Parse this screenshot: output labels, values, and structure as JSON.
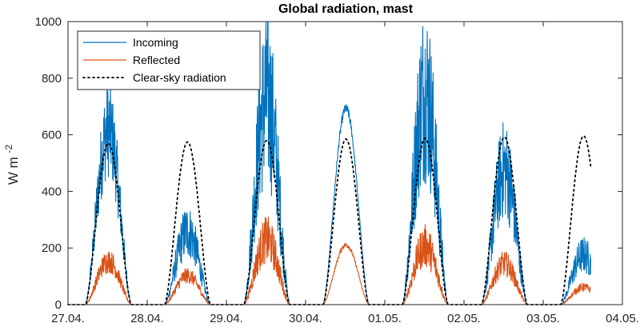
{
  "chart_data": {
    "type": "line",
    "title": "Global radiation, mast",
    "ylabel": "W m",
    "ylabel_superscript": "-2",
    "xlabel": "",
    "ylim": [
      0,
      1000
    ],
    "yticks": [
      0,
      200,
      400,
      600,
      800,
      1000
    ],
    "xlim_days": [
      0,
      7.0
    ],
    "xticks": [
      {
        "day": 0,
        "label": "27.04."
      },
      {
        "day": 1,
        "label": "28.04."
      },
      {
        "day": 2,
        "label": "29.04."
      },
      {
        "day": 3,
        "label": "30.04."
      },
      {
        "day": 4,
        "label": "01.05."
      },
      {
        "day": 5,
        "label": "02.05."
      },
      {
        "day": 6,
        "label": "03.05."
      },
      {
        "day": 7,
        "label": "04.05."
      }
    ],
    "grid": false,
    "legend_position": "top-left",
    "series": [
      {
        "name": "Incoming",
        "color": "#0072BD",
        "style": "solid",
        "days": [
          {
            "peak": 600,
            "noise": 0.22
          },
          {
            "peak": 250,
            "noise": 0.3
          },
          {
            "peak": 700,
            "noise": 0.35
          },
          {
            "peak": 690,
            "noise": 0.02
          },
          {
            "peak": 720,
            "noise": 0.35
          },
          {
            "peak": 460,
            "noise": 0.3
          },
          {
            "peak": 170,
            "noise": 0.3,
            "end_day": 6.6
          }
        ]
      },
      {
        "name": "Reflected",
        "color": "#D95319",
        "style": "solid",
        "days": [
          {
            "peak": 150,
            "noise": 0.22
          },
          {
            "peak": 100,
            "noise": 0.22
          },
          {
            "peak": 220,
            "noise": 0.3
          },
          {
            "peak": 210,
            "noise": 0.03
          },
          {
            "peak": 200,
            "noise": 0.3
          },
          {
            "peak": 140,
            "noise": 0.25
          },
          {
            "peak": 60,
            "noise": 0.2,
            "end_day": 6.6
          }
        ]
      },
      {
        "name": "Clear-sky radiation",
        "color": "#000000",
        "style": "dotted",
        "days": [
          {
            "peak": 570
          },
          {
            "peak": 575
          },
          {
            "peak": 580
          },
          {
            "peak": 585
          },
          {
            "peak": 588
          },
          {
            "peak": 592
          },
          {
            "peak": 596,
            "end_day": 6.6
          }
        ]
      }
    ]
  }
}
